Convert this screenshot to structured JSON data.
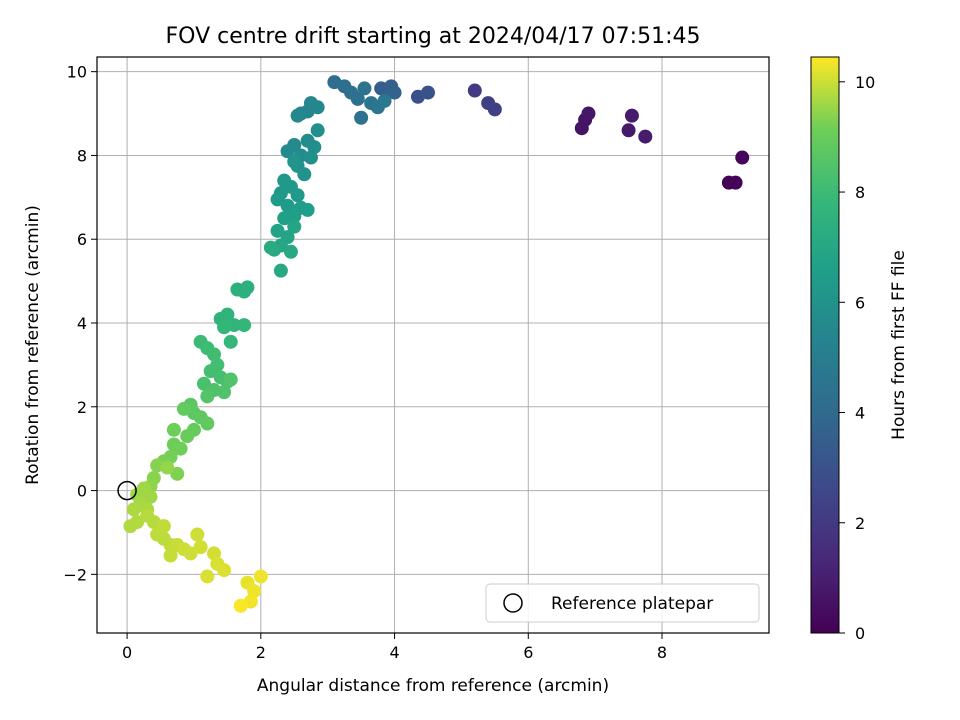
{
  "chart_data": {
    "type": "scatter",
    "title": "FOV centre drift starting at 2024/04/17 07:51:45",
    "xlabel": "Angular distance from reference (arcmin)",
    "ylabel": "Rotation from reference (arcmin)",
    "colorbar_label": "Hours from first FF file",
    "colormap": "viridis",
    "xlim": [
      -0.45,
      9.6
    ],
    "ylim": [
      -3.4,
      10.35
    ],
    "color_range": [
      0,
      10.45
    ],
    "x_ticks": [
      0,
      2,
      4,
      6,
      8
    ],
    "y_ticks": [
      -2,
      0,
      2,
      4,
      6,
      8,
      10
    ],
    "color_ticks": [
      0,
      2,
      4,
      6,
      8,
      10
    ],
    "x_tick_labels": [
      "0",
      "2",
      "4",
      "6",
      "8"
    ],
    "y_tick_labels": [
      "−2",
      "0",
      "2",
      "4",
      "6",
      "8",
      "10"
    ],
    "color_tick_labels": [
      "0",
      "2",
      "4",
      "6",
      "8",
      "10"
    ],
    "grid": true,
    "legend": {
      "position": "lower right",
      "entries": [
        "Reference platepar"
      ]
    },
    "reference_point": {
      "x": 0,
      "y": 0
    },
    "series": [
      {
        "points": [
          [
            9.0,
            7.35,
            0.05
          ],
          [
            9.1,
            7.35,
            0.1
          ],
          [
            9.2,
            7.95,
            0.2
          ],
          [
            6.8,
            8.65,
            0.6
          ],
          [
            6.85,
            8.85,
            0.65
          ],
          [
            6.9,
            9.0,
            0.7
          ],
          [
            7.5,
            8.6,
            0.8
          ],
          [
            7.55,
            8.95,
            0.85
          ],
          [
            7.75,
            8.45,
            0.9
          ],
          [
            5.2,
            9.55,
            2.0
          ],
          [
            5.4,
            9.25,
            2.2
          ],
          [
            5.5,
            9.1,
            2.3
          ],
          [
            4.35,
            9.4,
            2.9
          ],
          [
            4.5,
            9.5,
            3.0
          ],
          [
            3.8,
            9.6,
            3.5
          ],
          [
            3.9,
            9.55,
            3.6
          ],
          [
            3.95,
            9.65,
            3.6
          ],
          [
            4.0,
            9.5,
            3.7
          ],
          [
            3.1,
            9.75,
            4.2
          ],
          [
            3.25,
            9.65,
            4.25
          ],
          [
            3.35,
            9.5,
            4.3
          ],
          [
            3.45,
            9.35,
            4.35
          ],
          [
            3.5,
            8.9,
            4.4
          ],
          [
            3.55,
            9.6,
            4.45
          ],
          [
            3.65,
            9.25,
            4.5
          ],
          [
            3.75,
            9.15,
            4.6
          ],
          [
            3.85,
            9.3,
            4.7
          ],
          [
            2.6,
            9.0,
            5.3
          ],
          [
            2.7,
            9.05,
            5.35
          ],
          [
            2.75,
            9.25,
            5.4
          ],
          [
            2.85,
            9.15,
            5.45
          ],
          [
            2.55,
            8.95,
            5.5
          ],
          [
            2.4,
            8.1,
            5.6
          ],
          [
            2.5,
            8.25,
            5.6
          ],
          [
            2.6,
            8.0,
            5.7
          ],
          [
            2.7,
            8.35,
            5.75
          ],
          [
            2.8,
            8.2,
            5.8
          ],
          [
            2.85,
            8.6,
            5.85
          ],
          [
            2.75,
            7.95,
            5.9
          ],
          [
            2.55,
            7.75,
            5.95
          ],
          [
            2.65,
            7.55,
            6.0
          ],
          [
            2.5,
            7.85,
            6.05
          ],
          [
            2.3,
            7.1,
            6.2
          ],
          [
            2.35,
            7.4,
            6.25
          ],
          [
            2.45,
            7.25,
            6.3
          ],
          [
            2.55,
            7.05,
            6.35
          ],
          [
            2.25,
            6.95,
            6.4
          ],
          [
            2.4,
            6.8,
            6.45
          ],
          [
            2.6,
            6.75,
            6.5
          ],
          [
            2.7,
            6.7,
            6.55
          ],
          [
            2.5,
            6.55,
            6.6
          ],
          [
            2.35,
            6.5,
            6.65
          ],
          [
            2.25,
            6.2,
            6.8
          ],
          [
            2.4,
            6.05,
            6.85
          ],
          [
            2.5,
            6.3,
            6.9
          ],
          [
            2.3,
            5.85,
            6.95
          ],
          [
            2.2,
            5.75,
            7.0
          ],
          [
            2.45,
            5.7,
            7.05
          ],
          [
            2.3,
            5.25,
            7.1
          ],
          [
            2.15,
            5.8,
            7.15
          ],
          [
            1.65,
            4.8,
            7.4
          ],
          [
            1.75,
            4.75,
            7.45
          ],
          [
            1.8,
            4.85,
            7.45
          ],
          [
            1.4,
            4.1,
            7.6
          ],
          [
            1.5,
            4.2,
            7.65
          ],
          [
            1.6,
            3.95,
            7.7
          ],
          [
            1.75,
            3.95,
            7.75
          ],
          [
            1.45,
            3.9,
            7.8
          ],
          [
            1.55,
            3.55,
            7.85
          ],
          [
            1.1,
            3.55,
            8.0
          ],
          [
            1.2,
            3.4,
            8.05
          ],
          [
            1.3,
            3.25,
            8.1
          ],
          [
            1.35,
            3.0,
            8.15
          ],
          [
            1.25,
            2.85,
            8.2
          ],
          [
            1.4,
            2.7,
            8.25
          ],
          [
            1.5,
            2.6,
            8.3
          ],
          [
            1.15,
            2.55,
            8.35
          ],
          [
            1.3,
            2.4,
            8.4
          ],
          [
            1.45,
            2.35,
            8.45
          ],
          [
            1.55,
            2.65,
            8.5
          ],
          [
            1.2,
            2.25,
            8.55
          ],
          [
            0.95,
            2.05,
            8.7
          ],
          [
            1.0,
            1.85,
            8.75
          ],
          [
            1.1,
            1.75,
            8.8
          ],
          [
            1.2,
            1.6,
            8.85
          ],
          [
            0.85,
            1.95,
            8.9
          ],
          [
            1.0,
            1.45,
            8.95
          ],
          [
            0.9,
            1.3,
            9.0
          ],
          [
            0.7,
            1.1,
            9.1
          ],
          [
            0.8,
            1.0,
            9.15
          ],
          [
            0.65,
            0.8,
            9.2
          ],
          [
            0.55,
            0.7,
            9.25
          ],
          [
            0.75,
            0.4,
            9.3
          ],
          [
            0.45,
            0.6,
            9.35
          ],
          [
            0.4,
            0.3,
            9.4
          ],
          [
            0.35,
            0.1,
            9.45
          ],
          [
            0.6,
            0.55,
            9.5
          ],
          [
            0.7,
            1.45,
            9.1
          ],
          [
            0.15,
            -0.1,
            9.55
          ],
          [
            0.25,
            0.05,
            9.6
          ],
          [
            0.35,
            -0.15,
            9.6
          ],
          [
            0.2,
            -0.3,
            9.65
          ],
          [
            0.1,
            -0.45,
            9.7
          ],
          [
            0.3,
            -0.45,
            9.7
          ],
          [
            0.15,
            -0.75,
            9.75
          ],
          [
            0.05,
            -0.85,
            9.75
          ],
          [
            0.3,
            -0.6,
            9.8
          ],
          [
            0.4,
            -0.75,
            9.8
          ],
          [
            0.45,
            -1.05,
            9.85
          ],
          [
            0.55,
            -1.15,
            9.85
          ],
          [
            0.55,
            -0.85,
            9.9
          ],
          [
            0.65,
            -1.3,
            9.9
          ],
          [
            0.75,
            -1.3,
            9.95
          ],
          [
            0.65,
            -1.55,
            9.95
          ],
          [
            0.85,
            -1.4,
            10.0
          ],
          [
            0.95,
            -1.5,
            10.0
          ],
          [
            1.05,
            -1.05,
            10.0
          ],
          [
            1.1,
            -1.35,
            10.05
          ],
          [
            1.3,
            -1.5,
            10.05
          ],
          [
            1.2,
            -2.05,
            10.1
          ],
          [
            1.35,
            -1.75,
            10.1
          ],
          [
            1.45,
            -1.9,
            10.15
          ],
          [
            1.8,
            -2.2,
            10.25
          ],
          [
            1.9,
            -2.4,
            10.3
          ],
          [
            2.0,
            -2.05,
            10.3
          ],
          [
            1.85,
            -2.65,
            10.35
          ],
          [
            1.7,
            -2.75,
            10.4
          ]
        ]
      }
    ]
  }
}
